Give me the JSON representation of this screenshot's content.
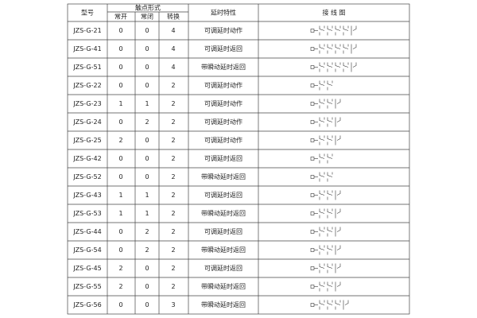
{
  "table": {
    "header": {
      "model": "型号",
      "contact_form": "触点形式",
      "normally_open": "常开",
      "normally_closed": "常闭",
      "changeover": "转换",
      "delay": "延时特性",
      "wiring": "接 线 图"
    },
    "rows": [
      [
        "JZS-G-21",
        0,
        0,
        4,
        "可调延时动作"
      ],
      [
        "JZS-G-41",
        0,
        0,
        4,
        "可调延时返回"
      ],
      [
        "JZS-G-51",
        0,
        0,
        4,
        "带瞬动延时返回"
      ],
      [
        "JZS-G-22",
        0,
        0,
        2,
        "可调延时动作"
      ],
      [
        "JZS-G-23",
        1,
        1,
        2,
        "可调延时动作"
      ],
      [
        "JZS-G-24",
        0,
        2,
        2,
        "可调延时动作"
      ],
      [
        "JZS-G-25",
        2,
        0,
        2,
        "可调延时动作"
      ],
      [
        "JZS-G-42",
        0,
        0,
        2,
        "可调延时返回"
      ],
      [
        "JZS-G-52",
        0,
        0,
        2,
        "带瞬动延时返回"
      ],
      [
        "JZS-G-43",
        1,
        1,
        2,
        "可调延时返回"
      ],
      [
        "JZS-G-53",
        1,
        1,
        2,
        "带瞬动延时返回"
      ],
      [
        "JZS-G-44",
        0,
        2,
        2,
        "可调延时返回"
      ],
      [
        "JZS-G-54",
        0,
        2,
        2,
        "带瞬动延时返回"
      ],
      [
        "JZS-G-45",
        2,
        0,
        2,
        "可调延时返回"
      ],
      [
        "JZS-G-55",
        2,
        0,
        2,
        "带瞬动延时返回"
      ],
      [
        "JZS-G-56",
        0,
        0,
        3,
        "带瞬动延时返回"
      ]
    ]
  }
}
